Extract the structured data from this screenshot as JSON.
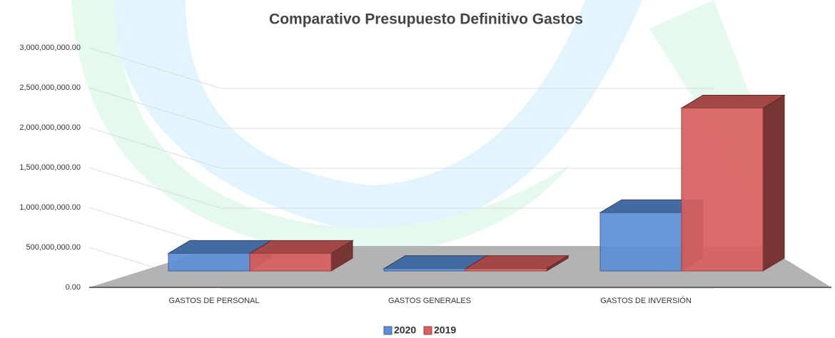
{
  "chart_data": {
    "type": "bar3d",
    "title": "Comparativo Presupuesto Definitivo Gastos",
    "categories": [
      "GASTOS DE PERSONAL",
      "GASTOS GENERALES",
      "GASTOS DE INVERSIÓN"
    ],
    "series": [
      {
        "name": "2020",
        "color": "#5b8fd6",
        "values": [
          220000000,
          30000000,
          730000000
        ]
      },
      {
        "name": "2019",
        "color": "#d9605e",
        "values": [
          220000000,
          30000000,
          2040000000
        ]
      }
    ],
    "ylim": [
      0,
      3000000000
    ],
    "yticks": [
      {
        "value": 0,
        "label": "0.00"
      },
      {
        "value": 500000000,
        "label": "500,000,000.00"
      },
      {
        "value": 1000000000,
        "label": "1,000,000,000.00"
      },
      {
        "value": 1500000000,
        "label": "1,500,000,000.00"
      },
      {
        "value": 2000000000,
        "label": "2,000,000,000.00"
      },
      {
        "value": 2500000000,
        "label": "2,500,000,000.00"
      },
      {
        "value": 3000000000,
        "label": "3,000,000,000.00"
      }
    ],
    "grid": true,
    "legend": "bottom"
  }
}
